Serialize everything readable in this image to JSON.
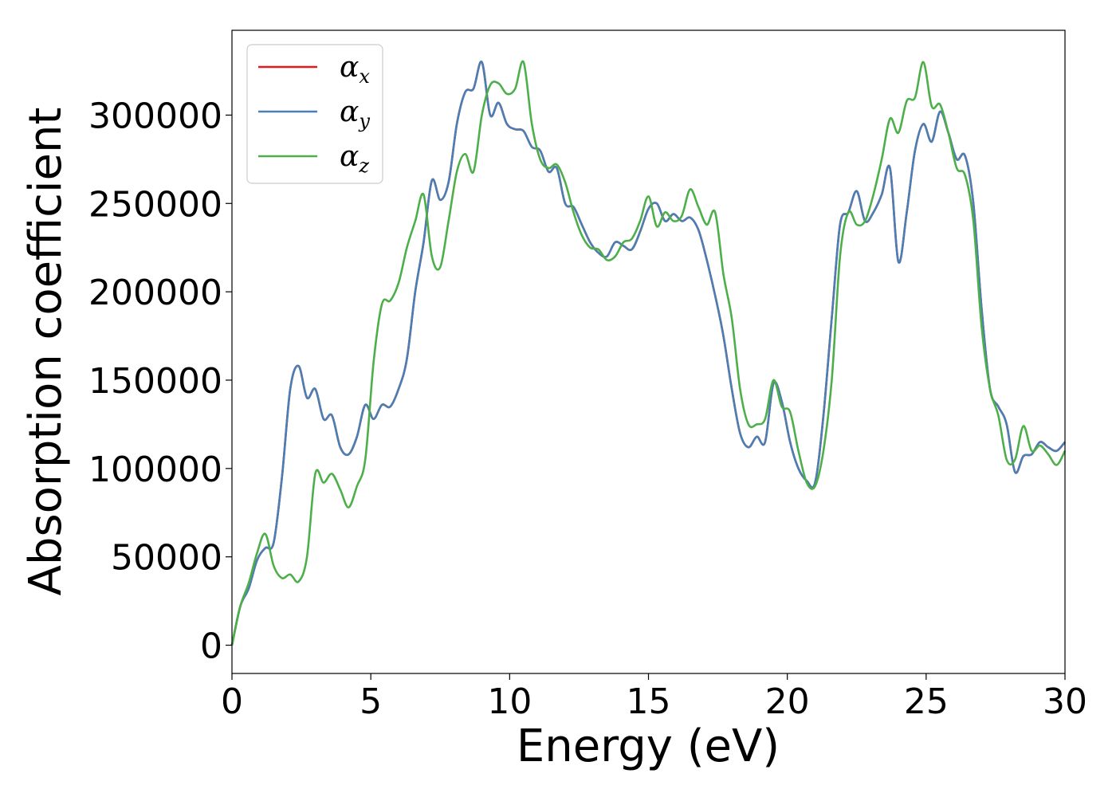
{
  "chart_data": {
    "type": "line",
    "title": "",
    "xlabel": "Energy (eV)",
    "ylabel": "Absorption coefficient",
    "xlim": [
      0,
      30
    ],
    "ylim": [
      -16000,
      348000
    ],
    "xticks": [
      0,
      5,
      10,
      15,
      20,
      25,
      30
    ],
    "yticks": [
      0,
      50000,
      100000,
      150000,
      200000,
      250000,
      300000
    ],
    "grid": false,
    "legend_position": "top-left",
    "series": [
      {
        "name": "α",
        "subscript": "x",
        "color": "#e41a1c",
        "x": [
          0,
          0.3,
          0.6,
          0.9,
          1.2,
          1.5,
          1.8,
          2.1,
          2.4,
          2.7,
          3.0,
          3.3,
          3.6,
          3.9,
          4.2,
          4.5,
          4.8,
          5.1,
          5.4,
          5.7,
          6.0,
          6.3,
          6.6,
          6.9,
          7.2,
          7.5,
          7.8,
          8.1,
          8.4,
          8.7,
          9.0,
          9.3,
          9.6,
          9.9,
          10.2,
          10.5,
          10.8,
          11.1,
          11.4,
          11.7,
          12.0,
          12.3,
          12.6,
          12.9,
          13.2,
          13.5,
          13.8,
          14.1,
          14.4,
          14.7,
          15.0,
          15.3,
          15.6,
          15.9,
          16.2,
          16.5,
          16.8,
          17.1,
          17.4,
          17.7,
          18.0,
          18.3,
          18.6,
          18.9,
          19.2,
          19.5,
          19.8,
          20.1,
          20.4,
          20.7,
          21.0,
          21.3,
          21.6,
          21.9,
          22.2,
          22.5,
          22.8,
          23.1,
          23.4,
          23.7,
          24.0,
          24.3,
          24.6,
          24.9,
          25.2,
          25.5,
          25.8,
          26.1,
          26.4,
          26.7,
          27.0,
          27.3,
          27.6,
          27.9,
          28.2,
          28.5,
          28.8,
          29.1,
          29.4,
          29.7,
          30.0
        ],
        "y": [
          0,
          22000,
          32000,
          48000,
          55000,
          58000,
          95000,
          145000,
          158000,
          140000,
          145000,
          128000,
          130000,
          112000,
          108000,
          118000,
          136000,
          128000,
          136000,
          135000,
          145000,
          162000,
          200000,
          228000,
          263000,
          252000,
          262000,
          295000,
          313000,
          315000,
          330000,
          300000,
          307000,
          295000,
          292000,
          291000,
          282000,
          280000,
          268000,
          270000,
          250000,
          248000,
          238000,
          228000,
          222000,
          220000,
          228000,
          226000,
          224000,
          234000,
          247000,
          250000,
          240000,
          244000,
          240000,
          242000,
          235000,
          218000,
          198000,
          175000,
          145000,
          120000,
          112000,
          118000,
          115000,
          148000,
          138000,
          115000,
          100000,
          93000,
          92000,
          130000,
          185000,
          238000,
          245000,
          257000,
          240000,
          245000,
          255000,
          270000,
          217000,
          245000,
          280000,
          295000,
          285000,
          302000,
          290000,
          275000,
          277000,
          250000,
          190000,
          145000,
          135000,
          125000,
          98000,
          107000,
          108000,
          115000,
          112000,
          110000,
          115000
        ]
      },
      {
        "name": "α",
        "subscript": "y",
        "color": "#4a7fb5",
        "x": [
          0,
          0.3,
          0.6,
          0.9,
          1.2,
          1.5,
          1.8,
          2.1,
          2.4,
          2.7,
          3.0,
          3.3,
          3.6,
          3.9,
          4.2,
          4.5,
          4.8,
          5.1,
          5.4,
          5.7,
          6.0,
          6.3,
          6.6,
          6.9,
          7.2,
          7.5,
          7.8,
          8.1,
          8.4,
          8.7,
          9.0,
          9.3,
          9.6,
          9.9,
          10.2,
          10.5,
          10.8,
          11.1,
          11.4,
          11.7,
          12.0,
          12.3,
          12.6,
          12.9,
          13.2,
          13.5,
          13.8,
          14.1,
          14.4,
          14.7,
          15.0,
          15.3,
          15.6,
          15.9,
          16.2,
          16.5,
          16.8,
          17.1,
          17.4,
          17.7,
          18.0,
          18.3,
          18.6,
          18.9,
          19.2,
          19.5,
          19.8,
          20.1,
          20.4,
          20.7,
          21.0,
          21.3,
          21.6,
          21.9,
          22.2,
          22.5,
          22.8,
          23.1,
          23.4,
          23.7,
          24.0,
          24.3,
          24.6,
          24.9,
          25.2,
          25.5,
          25.8,
          26.1,
          26.4,
          26.7,
          27.0,
          27.3,
          27.6,
          27.9,
          28.2,
          28.5,
          28.8,
          29.1,
          29.4,
          29.7,
          30.0
        ],
        "y": [
          0,
          22000,
          32000,
          48000,
          55000,
          58000,
          95000,
          145000,
          158000,
          140000,
          145000,
          128000,
          130000,
          112000,
          108000,
          118000,
          136000,
          128000,
          136000,
          135000,
          145000,
          162000,
          200000,
          228000,
          263000,
          252000,
          262000,
          295000,
          313000,
          315000,
          330000,
          300000,
          307000,
          295000,
          292000,
          291000,
          282000,
          280000,
          268000,
          270000,
          250000,
          248000,
          238000,
          228000,
          222000,
          220000,
          228000,
          226000,
          224000,
          234000,
          247000,
          250000,
          240000,
          244000,
          240000,
          242000,
          235000,
          218000,
          198000,
          175000,
          145000,
          120000,
          112000,
          118000,
          115000,
          148000,
          138000,
          115000,
          100000,
          93000,
          92000,
          130000,
          185000,
          238000,
          245000,
          257000,
          240000,
          245000,
          255000,
          270000,
          217000,
          245000,
          280000,
          295000,
          285000,
          302000,
          290000,
          275000,
          277000,
          250000,
          190000,
          145000,
          135000,
          125000,
          98000,
          107000,
          108000,
          115000,
          112000,
          110000,
          115000
        ]
      },
      {
        "name": "α",
        "subscript": "z",
        "color": "#4daf4a",
        "x": [
          0,
          0.3,
          0.6,
          0.9,
          1.2,
          1.5,
          1.8,
          2.1,
          2.4,
          2.7,
          3.0,
          3.3,
          3.6,
          3.9,
          4.2,
          4.5,
          4.8,
          5.1,
          5.4,
          5.7,
          6.0,
          6.3,
          6.6,
          6.9,
          7.2,
          7.5,
          7.8,
          8.1,
          8.4,
          8.7,
          9.0,
          9.3,
          9.6,
          9.9,
          10.2,
          10.5,
          10.8,
          11.1,
          11.4,
          11.7,
          12.0,
          12.3,
          12.6,
          12.9,
          13.2,
          13.5,
          13.8,
          14.1,
          14.4,
          14.7,
          15.0,
          15.3,
          15.6,
          15.9,
          16.2,
          16.5,
          16.8,
          17.1,
          17.4,
          17.7,
          18.0,
          18.3,
          18.6,
          18.9,
          19.2,
          19.5,
          19.8,
          20.1,
          20.4,
          20.7,
          21.0,
          21.3,
          21.6,
          21.9,
          22.2,
          22.5,
          22.8,
          23.1,
          23.4,
          23.7,
          24.0,
          24.3,
          24.6,
          24.9,
          25.2,
          25.5,
          25.8,
          26.1,
          26.4,
          26.7,
          27.0,
          27.3,
          27.6,
          27.9,
          28.2,
          28.5,
          28.8,
          29.1,
          29.4,
          29.7,
          30.0
        ],
        "y": [
          0,
          22000,
          35000,
          52000,
          63000,
          45000,
          38000,
          40000,
          36000,
          50000,
          97000,
          92000,
          97000,
          88000,
          78000,
          90000,
          105000,
          160000,
          193000,
          195000,
          205000,
          225000,
          240000,
          255000,
          220000,
          214000,
          240000,
          268000,
          278000,
          268000,
          300000,
          317000,
          318000,
          312000,
          315000,
          330000,
          295000,
          275000,
          270000,
          272000,
          262000,
          245000,
          232000,
          225000,
          224000,
          218000,
          220000,
          228000,
          230000,
          240000,
          254000,
          237000,
          245000,
          240000,
          243000,
          258000,
          248000,
          238000,
          245000,
          210000,
          185000,
          145000,
          125000,
          125000,
          128000,
          150000,
          135000,
          132000,
          110000,
          92000,
          90000,
          110000,
          150000,
          220000,
          245000,
          238000,
          240000,
          255000,
          275000,
          298000,
          290000,
          308000,
          310000,
          330000,
          305000,
          306000,
          290000,
          270000,
          266000,
          240000,
          180000,
          145000,
          130000,
          105000,
          105000,
          124000,
          110000,
          113000,
          108000,
          102000,
          110000
        ]
      }
    ]
  }
}
